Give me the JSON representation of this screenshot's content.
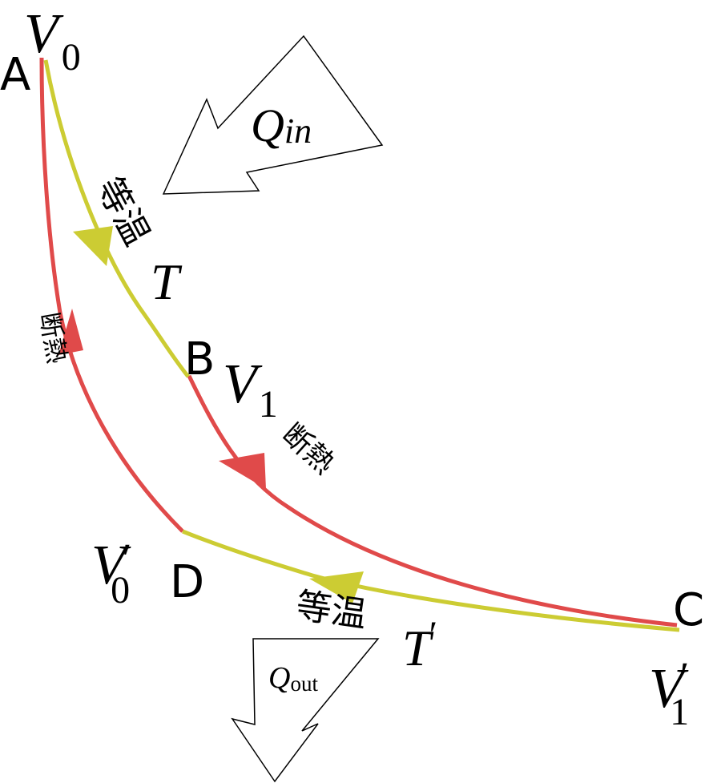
{
  "colors": {
    "adiabat": "#e04a4a",
    "isotherm": "#cccc33",
    "arrow_outline": "#000000",
    "text": "#000000"
  },
  "points": {
    "a": "A",
    "b": "B",
    "c": "C",
    "d": "D"
  },
  "volumes": {
    "v0_sym": "V",
    "v0_sub": "0",
    "v1_sym": "V",
    "v1_sub": "1",
    "v0p_sym": "V",
    "v0p_prime": "′",
    "v0p_sub": "0",
    "v1p_sym": "V",
    "v1p_prime": "′",
    "v1p_sub": "1"
  },
  "heat": {
    "qin_sym": "Q",
    "qin_sub": "in",
    "qout_sym": "Q",
    "qout_sub": "out"
  },
  "processes": {
    "isothermal_high": "等温",
    "temp_high": "T",
    "adiabatic_expansion": "断熱",
    "isothermal_low": "等温",
    "temp_low": "T",
    "temp_low_prime": "′",
    "adiabatic_compression": "断熱"
  },
  "icons": [
    "heat-in-arrow-icon",
    "heat-out-arrow-icon",
    "direction-arrow-icon"
  ]
}
